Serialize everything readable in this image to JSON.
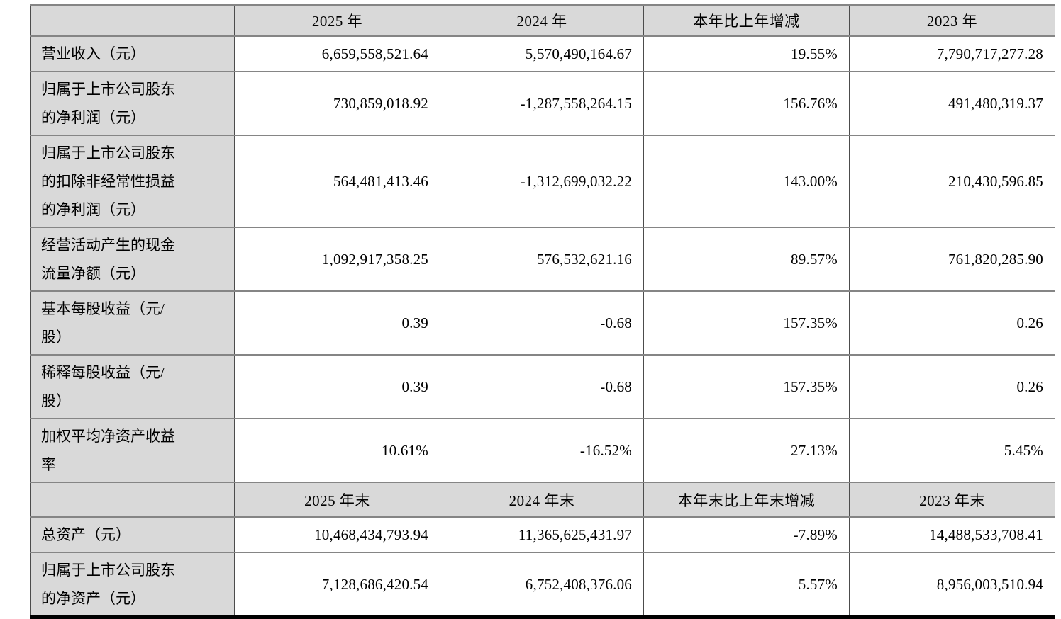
{
  "colors": {
    "header_background": "#d9d9d9",
    "cell_background": "#ffffff",
    "horizontal_rule": "#858585",
    "vertical_rule": "#4c4c4c",
    "bottom_border": "#000000"
  },
  "table": {
    "period_header": {
      "corner": "",
      "cols": [
        "2025 年",
        "2024 年",
        "本年比上年增减",
        "2023 年"
      ]
    },
    "period_rows": [
      {
        "label": "营业收入（元）",
        "v2025": "6,659,558,521.64",
        "v2024": "5,570,490,164.67",
        "change": "19.55%",
        "v2023": "7,790,717,277.28"
      },
      {
        "label": "归属于上市公司股东\n的净利润（元）",
        "v2025": "730,859,018.92",
        "v2024": "-1,287,558,264.15",
        "change": "156.76%",
        "v2023": "491,480,319.37"
      },
      {
        "label": "归属于上市公司股东\n的扣除非经常性损益\n的净利润（元）",
        "v2025": "564,481,413.46",
        "v2024": "-1,312,699,032.22",
        "change": "143.00%",
        "v2023": "210,430,596.85"
      },
      {
        "label": "经营活动产生的现金\n流量净额（元）",
        "v2025": "1,092,917,358.25",
        "v2024": "576,532,621.16",
        "change": "89.57%",
        "v2023": "761,820,285.90"
      },
      {
        "label": "基本每股收益（元/\n股）",
        "v2025": "0.39",
        "v2024": "-0.68",
        "change": "157.35%",
        "v2023": "0.26"
      },
      {
        "label": "稀释每股收益（元/\n股）",
        "v2025": "0.39",
        "v2024": "-0.68",
        "change": "157.35%",
        "v2023": "0.26"
      },
      {
        "label": "加权平均净资产收益\n率",
        "v2025": "10.61%",
        "v2024": "-16.52%",
        "change": "27.13%",
        "v2023": "5.45%"
      }
    ],
    "endpoint_header": {
      "corner": "",
      "cols": [
        "2025 年末",
        "2024 年末",
        "本年末比上年末增减",
        "2023 年末"
      ]
    },
    "endpoint_rows": [
      {
        "label": "总资产（元）",
        "v2025": "10,468,434,793.94",
        "v2024": "11,365,625,431.97",
        "change": "-7.89%",
        "v2023": "14,488,533,708.41"
      },
      {
        "label": "归属于上市公司股东\n的净资产（元）",
        "v2025": "7,128,686,420.54",
        "v2024": "6,752,408,376.06",
        "change": "5.57%",
        "v2023": "8,956,003,510.94"
      }
    ]
  }
}
